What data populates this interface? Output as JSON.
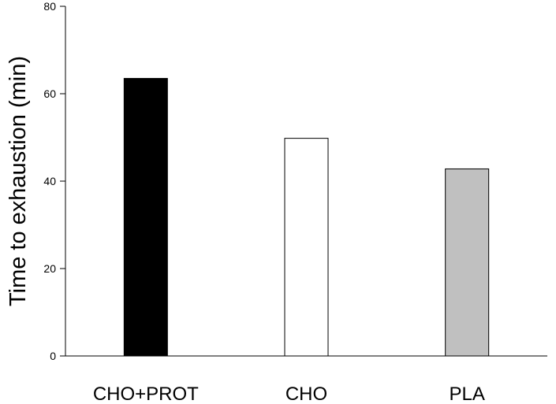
{
  "chart_data": {
    "type": "bar",
    "title": "",
    "xlabel": "",
    "ylabel": "Time to exhaustion (min)",
    "ylim": [
      0,
      80
    ],
    "yticks": [
      0,
      20,
      40,
      60,
      80
    ],
    "categories": [
      "CHO+PROT",
      "CHO",
      "PLA"
    ],
    "values": [
      63.5,
      49.8,
      42.8
    ],
    "colors": [
      "#000000",
      "#ffffff",
      "#c0c0c0"
    ],
    "grid": false,
    "legend": "none"
  }
}
